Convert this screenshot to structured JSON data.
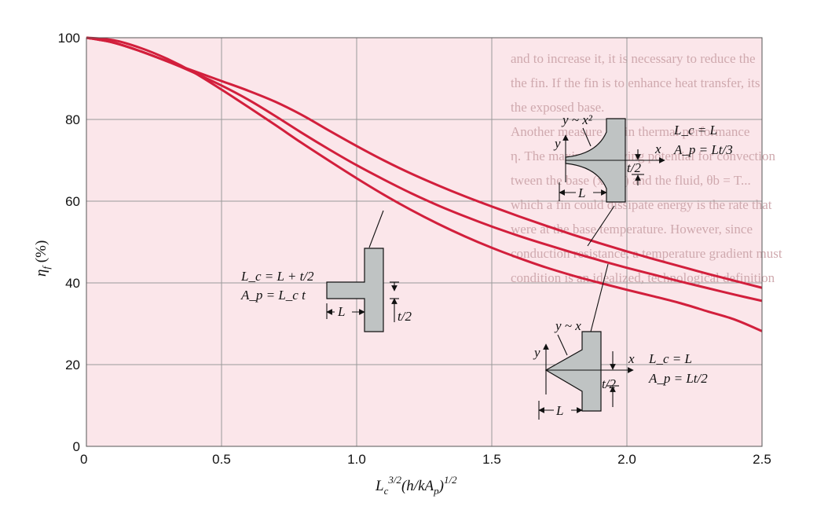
{
  "chart_data": {
    "type": "line",
    "xlabel_parts": {
      "base": "L",
      "sub": "c",
      "sup": "3/2",
      "rest": "(h/kA",
      "rest_sub": "p",
      "rest_end": ")",
      "rest_sup": "1/2"
    },
    "ylabel_parts": {
      "base": "η",
      "sub": "f",
      "rest": " (%)"
    },
    "xlim": [
      0,
      2.5
    ],
    "ylim": [
      0,
      100
    ],
    "x_ticks": [
      "0",
      "0.5",
      "1.0",
      "1.5",
      "2.0",
      "2.5"
    ],
    "y_ticks": [
      "0",
      "20",
      "40",
      "60",
      "80",
      "100"
    ],
    "grid": true,
    "series": [
      {
        "x": [
          0,
          0.1,
          0.2,
          0.3,
          0.4,
          0.5,
          0.6,
          0.7,
          0.8,
          0.9,
          1.0,
          1.1,
          1.2,
          1.3,
          1.4,
          1.5,
          1.6,
          1.7,
          1.8,
          1.9,
          2.0,
          2.1,
          2.2,
          2.3,
          2.4,
          2.5
        ],
        "y": [
          100,
          99.4,
          97.5,
          94.8,
          91.4,
          87.3,
          83.0,
          78.6,
          74.1,
          69.8,
          65.6,
          61.6,
          57.9,
          54.5,
          51.4,
          48.6,
          46.1,
          43.8,
          41.8,
          40.0,
          38.3,
          36.7,
          35.0,
          33.0,
          31.0,
          28.2
        ]
      },
      {
        "x": [
          0,
          0.1,
          0.2,
          0.3,
          0.4,
          0.5,
          0.6,
          0.7,
          0.8,
          0.9,
          1.0,
          1.1,
          1.2,
          1.3,
          1.4,
          1.5,
          1.6,
          1.7,
          1.8,
          1.9,
          2.0,
          2.1,
          2.2,
          2.3,
          2.4,
          2.5
        ],
        "y": [
          100,
          98.8,
          96.7,
          94.2,
          91.4,
          88.3,
          84.8,
          80.8,
          76.6,
          72.6,
          68.8,
          65.3,
          62.0,
          59.0,
          56.3,
          53.8,
          51.5,
          49.4,
          47.4,
          45.5,
          43.7,
          42.0,
          40.3,
          38.7,
          37.1,
          35.6
        ]
      },
      {
        "x": [
          0,
          0.1,
          0.2,
          0.3,
          0.4,
          0.5,
          0.6,
          0.7,
          0.8,
          0.9,
          1.0,
          1.1,
          1.2,
          1.3,
          1.4,
          1.5,
          1.6,
          1.7,
          1.8,
          1.9,
          2.0,
          2.1,
          2.2,
          2.3,
          2.4,
          2.5
        ],
        "y": [
          100,
          98.8,
          96.7,
          94.2,
          91.8,
          89.4,
          87.0,
          84.3,
          81.0,
          77.2,
          73.5,
          70.0,
          66.8,
          63.9,
          61.2,
          58.7,
          56.3,
          54.0,
          51.8,
          49.7,
          47.7,
          45.8,
          44.0,
          42.2,
          40.5,
          38.8
        ]
      }
    ],
    "annotations": {
      "rect": {
        "eq1": "L_c = L + t/2",
        "eq2": "A_p = L_c t",
        "dim_L": "L",
        "dim_t": "t/2"
      },
      "parabolic": {
        "label": "y ~ x²",
        "eq1": "L_c = L",
        "eq2": "A_p = Lt/3",
        "axis_x": "x",
        "axis_y": "y",
        "dim_L": "L",
        "dim_t": "t/2"
      },
      "triangular": {
        "label": "y ~ x",
        "eq1": "L_c = L",
        "eq2": "A_p = Lt/2",
        "axis_x": "x",
        "axis_y": "y",
        "dim_L": "L",
        "dim_t": "t/2"
      }
    },
    "background_text": [
      "and to increase it, it is necessary to reduce the",
      "the fin. If the fin is to enhance heat transfer, its",
      "the exposed base.",
      "Another measure of fin thermal performance",
      "η. The maximum driving potential for convection",
      "tween the base (x = 0) and the fluid, θb = T...",
      "which a fin could dissipate energy is the rate that",
      "were at the base temperature. However, since",
      "conduction resistance, a temperature gradient must",
      "condition is an idealized, technological definition"
    ]
  }
}
